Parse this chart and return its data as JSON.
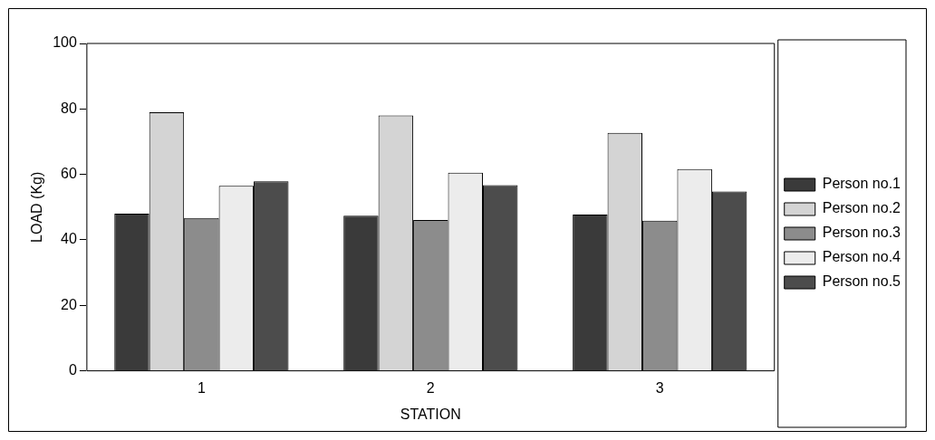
{
  "chart_data": {
    "type": "bar",
    "xlabel": "STATION",
    "ylabel": "LOAD (Kg)",
    "categories": [
      "1",
      "2",
      "3"
    ],
    "series": [
      {
        "name": "Person no.1",
        "color": "#3a3a3a",
        "values": [
          48,
          47.4,
          47.7
        ]
      },
      {
        "name": "Person no.2",
        "color": "#d4d4d4",
        "values": [
          79,
          78,
          72.7
        ]
      },
      {
        "name": "Person no.3",
        "color": "#8c8c8c",
        "values": [
          46.7,
          46.1,
          45.9
        ]
      },
      {
        "name": "Person no.4",
        "color": "#ececec",
        "values": [
          56.5,
          60.5,
          61.6
        ]
      },
      {
        "name": "Person no.5",
        "color": "#4c4c4c",
        "values": [
          57.9,
          56.7,
          54.8
        ]
      }
    ],
    "ylim": [
      0,
      100
    ],
    "yticks": [
      0,
      20,
      40,
      60,
      80,
      100
    ],
    "grid": false,
    "legend": "right"
  }
}
